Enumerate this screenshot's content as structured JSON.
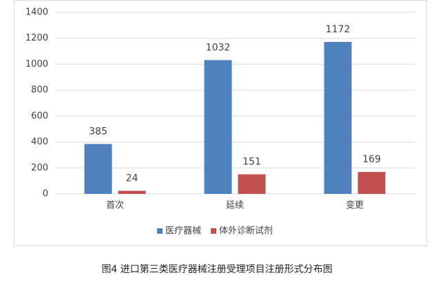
{
  "chart_data": {
    "type": "bar",
    "categories": [
      "首次",
      "延续",
      "变更"
    ],
    "series": [
      {
        "name": "医疗器械",
        "color": "#4f81bd",
        "values": [
          385,
          1032,
          1172
        ]
      },
      {
        "name": "体外诊断试剂",
        "color": "#c0504d",
        "values": [
          24,
          151,
          169
        ]
      }
    ],
    "ylim": [
      0,
      1400
    ],
    "yticks": [
      0,
      200,
      400,
      600,
      800,
      1000,
      1200,
      1400
    ],
    "grid": true,
    "legend": "bottom",
    "caption": "图4 进口第三类医疗器械注册受理项目注册形式分布图"
  }
}
